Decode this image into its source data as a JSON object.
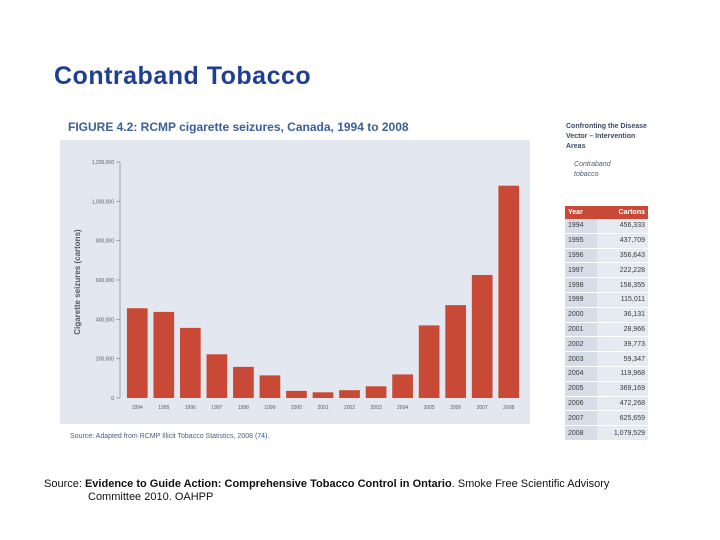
{
  "slide_title": "Contraband Tobacco",
  "figure_title": "FIGURE 4.2: RCMP cigarette seizures, Canada, 1994 to 2008",
  "figure_source": "Source: Adapted from RCMP Illicit Tobacco Statistics, 2008 ",
  "figure_source_ref": "(74).",
  "sidebar": {
    "heading": "Confronting the Disease Vector – Intervention Areas",
    "subheading": "Contraband tobacco"
  },
  "table": {
    "headers": [
      "Year",
      "Cartons"
    ],
    "rows": [
      [
        "1994",
        "456,333"
      ],
      [
        "1995",
        "437,709"
      ],
      [
        "1996",
        "356,643"
      ],
      [
        "1997",
        "222,228"
      ],
      [
        "1998",
        "158,355"
      ],
      [
        "1999",
        "115,011"
      ],
      [
        "2000",
        "36,131"
      ],
      [
        "2001",
        "28,966"
      ],
      [
        "2002",
        "39,773"
      ],
      [
        "2003",
        "59,347"
      ],
      [
        "2004",
        "119,968"
      ],
      [
        "2005",
        "369,169"
      ],
      [
        "2006",
        "472,268"
      ],
      [
        "2007",
        "625,659"
      ],
      [
        "2008",
        "1,079,529"
      ]
    ]
  },
  "source_note": {
    "prefix": "Source: ",
    "title": "Evidence to Guide Action: Comprehensive Tobacco Control in Ontario",
    "rest": ". Smoke Free Scientific Advisory",
    "line2": "Committee 2010. OAHPP"
  },
  "colors": {
    "bar": "#c84a36",
    "chart_bg": "#e3e8f0",
    "title_blue": "#1f3f8f",
    "figure_title_blue": "#3a5f9a"
  },
  "chart_data": {
    "type": "bar",
    "title": "FIGURE 4.2: RCMP cigarette seizures, Canada, 1994 to 2008",
    "xlabel": "",
    "ylabel": "Cigarette seizures (cartons)",
    "categories": [
      "1994",
      "1995",
      "1996",
      "1997",
      "1998",
      "1999",
      "2000",
      "2001",
      "2002",
      "2003",
      "2004",
      "2005",
      "2006",
      "2007",
      "2008"
    ],
    "values": [
      456333,
      437709,
      356643,
      222228,
      158355,
      115011,
      36131,
      28966,
      39773,
      59347,
      119968,
      369169,
      472268,
      625659,
      1079529
    ],
    "ylim": [
      0,
      1200000
    ],
    "yticks": [
      0,
      200000,
      400000,
      600000,
      800000,
      1000000,
      1200000
    ],
    "ytick_labels": [
      "0",
      "200,000",
      "400,000",
      "600,000",
      "800,000",
      "1,000,000",
      "1,200,000"
    ],
    "grid": false,
    "legend": "none"
  }
}
